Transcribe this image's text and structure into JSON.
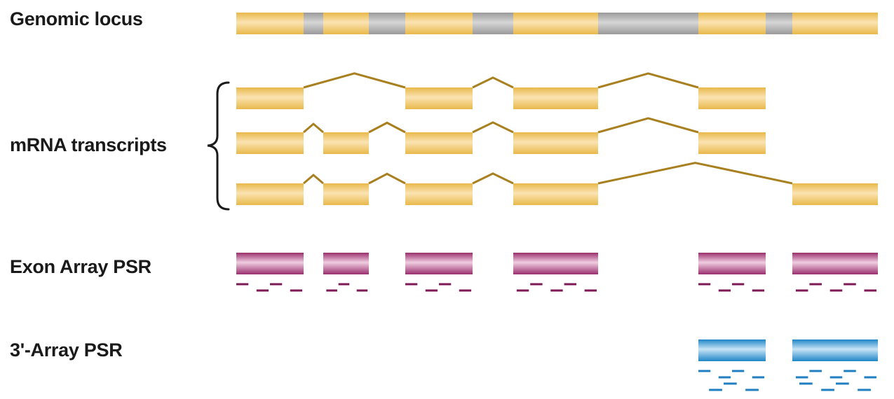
{
  "labels": {
    "genomic_locus": "Genomic locus",
    "mrna_transcripts": "mRNA transcripts",
    "exon_array_psr": "Exon Array PSR",
    "three_prime_array_psr": "3'-Array PSR"
  },
  "colors": {
    "exon": "#e8b84a",
    "exon_highlight": "#fbe3b2",
    "intron": "#9a9a9a",
    "intron_highlight": "#d6d6d6",
    "splice_line": "#a88020",
    "exon_psr": "#9a2f6e",
    "exon_psr_highlight": "#f0cde0",
    "exon_probe": "#7d1a55",
    "three_prime_psr": "#1f86c6",
    "three_prime_psr_highlight": "#c7e4f6",
    "three_prime_probe": "#1f7fc0",
    "brace": "#1a1a1a"
  },
  "diagram": {
    "exon_count": 6,
    "transcripts": [
      {
        "exons": [
          1,
          3,
          4,
          5
        ]
      },
      {
        "exons": [
          1,
          2,
          3,
          4,
          5
        ]
      },
      {
        "exons": [
          1,
          2,
          3,
          4,
          6
        ]
      }
    ],
    "exon_array_psr_exons": [
      1,
      2,
      3,
      4,
      5,
      6
    ],
    "three_prime_array_psr_exons": [
      5,
      6
    ]
  }
}
